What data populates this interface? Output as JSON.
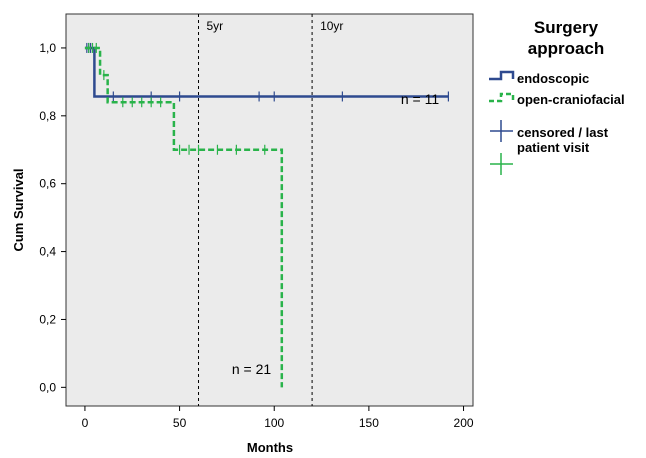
{
  "chart_data": {
    "type": "line",
    "subtype": "kaplan-meier",
    "title": "",
    "xlabel": "Months",
    "ylabel": "Cum Survival",
    "xlim": [
      -10,
      205
    ],
    "ylim": [
      -0.055,
      1.1
    ],
    "xticks": [
      0,
      50,
      100,
      150,
      200
    ],
    "xtick_labels": [
      "0",
      "50",
      "100",
      "150",
      "200"
    ],
    "yticks": [
      0.0,
      0.2,
      0.4,
      0.6,
      0.8,
      1.0
    ],
    "ytick_labels": [
      "0,0",
      "0,2",
      "0,4",
      "0,6",
      "0,8",
      "1,0"
    ],
    "grid": false,
    "plot_background": "#ebebeb",
    "legend_position": "right",
    "legend": {
      "title": "Surgery approach",
      "title_lines": [
        "Surgery",
        "approach"
      ],
      "entries": [
        "endoscopic",
        "open-craniofacial"
      ],
      "censor_label_lines": [
        "censored / last",
        "patient visit"
      ]
    },
    "reference_lines": [
      {
        "x": 60,
        "label": "5yr"
      },
      {
        "x": 120,
        "label": "10yr"
      }
    ],
    "annotations": [
      {
        "text": "n = 11",
        "x": 177,
        "y": 0.835
      },
      {
        "text": "n = 21",
        "x": 88,
        "y": 0.04
      }
    ],
    "series": [
      {
        "name": "endoscopic",
        "color": "#2e4a8f",
        "style": "solid",
        "steps": [
          [
            0,
            1.0
          ],
          [
            5,
            1.0
          ],
          [
            5,
            0.857
          ],
          [
            192,
            0.857
          ]
        ],
        "censored": [
          [
            1,
            1.0
          ],
          [
            2,
            1.0
          ],
          [
            3,
            1.0
          ],
          [
            15,
            0.857
          ],
          [
            35,
            0.857
          ],
          [
            50,
            0.857
          ],
          [
            92,
            0.857
          ],
          [
            100,
            0.857
          ],
          [
            136,
            0.857
          ],
          [
            192,
            0.857
          ]
        ]
      },
      {
        "name": "open-craniofacial",
        "color": "#29b34a",
        "style": "dashed",
        "steps": [
          [
            0,
            1.0
          ],
          [
            8,
            1.0
          ],
          [
            8,
            0.92
          ],
          [
            12,
            0.92
          ],
          [
            12,
            0.84
          ],
          [
            47,
            0.84
          ],
          [
            47,
            0.7
          ],
          [
            104,
            0.7
          ],
          [
            104,
            0.0
          ]
        ],
        "censored": [
          [
            2,
            1.0
          ],
          [
            4,
            1.0
          ],
          [
            6,
            1.0
          ],
          [
            10,
            0.92
          ],
          [
            20,
            0.84
          ],
          [
            25,
            0.84
          ],
          [
            30,
            0.84
          ],
          [
            35,
            0.84
          ],
          [
            40,
            0.84
          ],
          [
            50,
            0.7
          ],
          [
            55,
            0.7
          ],
          [
            60,
            0.7
          ],
          [
            70,
            0.7
          ],
          [
            80,
            0.7
          ],
          [
            95,
            0.7
          ]
        ]
      }
    ]
  }
}
